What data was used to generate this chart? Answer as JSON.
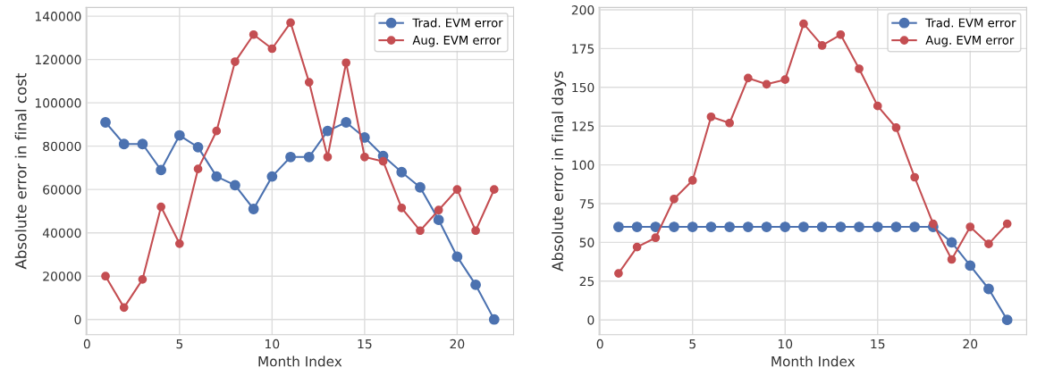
{
  "chart_data": [
    {
      "type": "line",
      "xlabel": "Month Index",
      "ylabel": "Absolute error in final cost",
      "x": [
        1,
        2,
        3,
        4,
        5,
        6,
        7,
        8,
        9,
        10,
        11,
        12,
        13,
        14,
        15,
        16,
        17,
        18,
        19,
        20,
        21,
        22
      ],
      "xlim": [
        -0.05,
        23.05
      ],
      "xticks": [
        0,
        5,
        10,
        15,
        20
      ],
      "ylim": [
        -7000,
        144000
      ],
      "yticks": [
        0,
        20000,
        40000,
        60000,
        80000,
        100000,
        120000,
        140000
      ],
      "grid": true,
      "legend": "top right",
      "marker": "circle",
      "line_style": "solid",
      "series": [
        {
          "name": "Trad. EVM error",
          "color": "#4c72b0",
          "values": [
            91000,
            81000,
            81000,
            69000,
            85000,
            79500,
            66000,
            62000,
            51000,
            66000,
            75000,
            75000,
            87000,
            91000,
            84000,
            75500,
            68000,
            61000,
            46000,
            29000,
            16000,
            0
          ]
        },
        {
          "name": "Aug. EVM error",
          "color": "#c44e52",
          "values": [
            20000,
            5500,
            18500,
            52000,
            35000,
            69500,
            87000,
            119000,
            131500,
            125000,
            137000,
            109500,
            75000,
            118500,
            75000,
            73000,
            51500,
            41000,
            50500,
            60000,
            41000,
            60000
          ]
        }
      ]
    },
    {
      "type": "line",
      "xlabel": "Month Index",
      "ylabel": "Absolute error in final days",
      "x": [
        1,
        2,
        3,
        4,
        5,
        6,
        7,
        8,
        9,
        10,
        11,
        12,
        13,
        14,
        15,
        16,
        17,
        18,
        19,
        20,
        21,
        22
      ],
      "xlim": [
        -0.05,
        23.05
      ],
      "xticks": [
        0,
        5,
        10,
        15,
        20
      ],
      "ylim": [
        -9.5,
        201.5
      ],
      "yticks": [
        0,
        25,
        50,
        75,
        100,
        125,
        150,
        175,
        200
      ],
      "grid": true,
      "legend": "top right",
      "marker": "circle",
      "line_style": "solid",
      "series": [
        {
          "name": "Trad. EVM error",
          "color": "#4c72b0",
          "values": [
            60,
            60,
            60,
            60,
            60,
            60,
            60,
            60,
            60,
            60,
            60,
            60,
            60,
            60,
            60,
            60,
            60,
            60,
            50,
            35,
            20,
            0
          ]
        },
        {
          "name": "Aug. EVM error",
          "color": "#c44e52",
          "values": [
            30,
            47,
            53,
            78,
            90,
            131,
            127,
            156,
            152,
            155,
            191,
            177,
            184,
            162,
            138,
            124,
            92,
            62,
            39,
            60,
            49,
            62
          ]
        }
      ]
    }
  ]
}
